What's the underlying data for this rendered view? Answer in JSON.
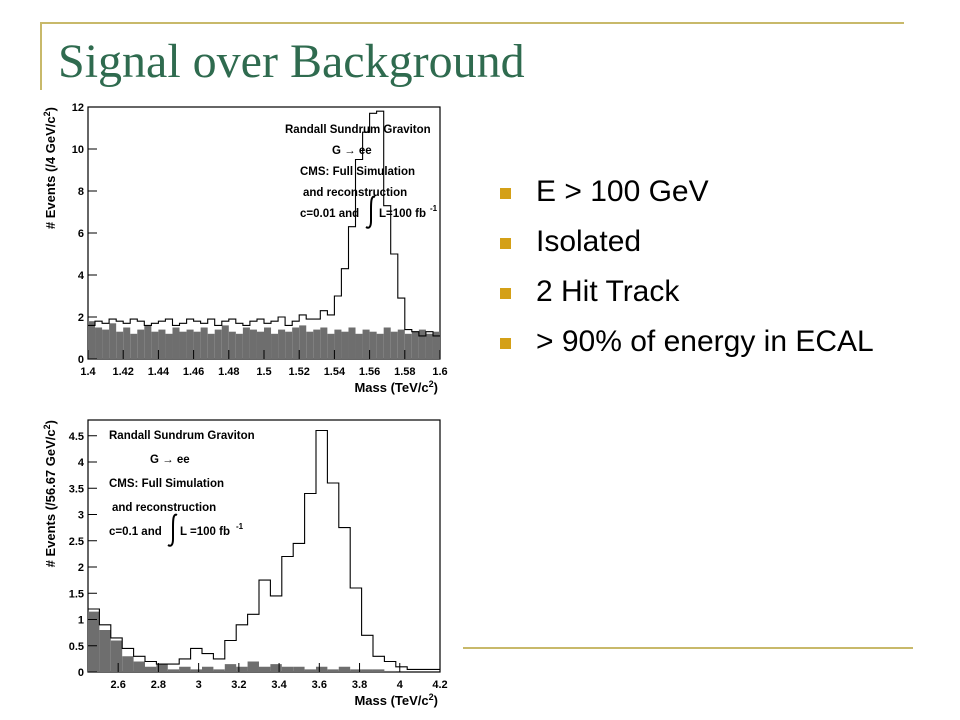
{
  "slide": {
    "title": "Signal over Background",
    "bullets": [
      "E > 100 GeV",
      "Isolated",
      "2 Hit Track",
      "> 90% of energy in ECAL"
    ],
    "accent_color": "#c8b96a",
    "title_color": "#2f6b4f",
    "bullet_color": "#d4a017"
  },
  "chart_data": [
    {
      "type": "histogram",
      "xlabel": "Mass (TeV/c^2)",
      "ylabel": "# Events (/4 GeV/c^2)",
      "xlim": [
        1.4,
        1.6
      ],
      "ylim": [
        0,
        12
      ],
      "xticks": [
        "1.4",
        "1.42",
        "1.44",
        "1.46",
        "1.48",
        "1.5",
        "1.52",
        "1.54",
        "1.56",
        "1.58",
        "1.6"
      ],
      "yticks": [
        "0",
        "2",
        "4",
        "6",
        "8",
        "10",
        "12"
      ],
      "annotations": [
        "Randall Sundrum Graviton",
        "G → ee",
        "CMS: Full Simulation",
        "and reconstruction",
        "c=0.01 and",
        "L=100 fb",
        "-1"
      ],
      "bin_width": 0.004,
      "series": [
        {
          "style": "outline",
          "values": [
            1.6,
            1.8,
            1.7,
            1.9,
            1.8,
            1.7,
            1.9,
            1.8,
            1.6,
            1.7,
            1.8,
            1.9,
            1.6,
            1.7,
            1.9,
            1.8,
            1.7,
            1.9,
            1.6,
            1.8,
            1.9,
            1.7,
            1.6,
            1.8,
            1.9,
            1.7,
            1.8,
            2.0,
            1.6,
            1.8,
            2.1,
            1.9,
            1.9,
            2.3,
            2.1,
            3.0,
            4.3,
            6.3,
            9.5,
            10.8,
            11.7,
            11.8,
            7.3,
            5.0,
            2.9,
            1.4,
            1.3,
            1.1,
            1.3,
            1.1
          ]
        },
        {
          "style": "filled",
          "values": [
            1.8,
            1.5,
            1.4,
            1.7,
            1.3,
            1.5,
            1.2,
            1.4,
            1.6,
            1.3,
            1.4,
            1.2,
            1.5,
            1.3,
            1.4,
            1.3,
            1.5,
            1.2,
            1.4,
            1.6,
            1.3,
            1.2,
            1.5,
            1.4,
            1.3,
            1.5,
            1.2,
            1.4,
            1.3,
            1.5,
            1.6,
            1.3,
            1.4,
            1.5,
            1.2,
            1.4,
            1.3,
            1.5,
            1.2,
            1.4,
            1.3,
            1.2,
            1.5,
            1.3,
            1.4,
            1.2,
            1.3,
            1.4,
            1.2,
            1.3
          ]
        }
      ]
    },
    {
      "type": "histogram",
      "xlabel": "Mass (TeV/c^2)",
      "ylabel": "# Events (/56.67 GeV/c^2)",
      "xlim": [
        2.45,
        4.2
      ],
      "ylim": [
        0,
        4.8
      ],
      "xticks": [
        "2.6",
        "2.8",
        "3",
        "3.2",
        "3.4",
        "3.6",
        "3.8",
        "4",
        "4.2"
      ],
      "xtick_values": [
        2.6,
        2.8,
        3.0,
        3.2,
        3.4,
        3.6,
        3.8,
        4.0,
        4.2
      ],
      "yticks": [
        "0",
        "0.5",
        "1",
        "1.5",
        "2",
        "2.5",
        "3",
        "3.5",
        "4",
        "4.5"
      ],
      "ytick_values": [
        0,
        0.5,
        1,
        1.5,
        2,
        2.5,
        3,
        3.5,
        4,
        4.5
      ],
      "annotations": [
        "Randall Sundrum Graviton",
        "G → ee",
        "CMS: Full Simulation",
        "and reconstruction",
        "c=0.1 and",
        "L =100 fb",
        "-1"
      ],
      "bin_width": 0.05667,
      "series": [
        {
          "style": "outline",
          "values": [
            1.2,
            0.9,
            0.65,
            0.45,
            0.3,
            0.2,
            0.15,
            0.15,
            0.25,
            0.45,
            0.35,
            0.25,
            0.6,
            0.9,
            1.1,
            1.75,
            1.45,
            2.2,
            2.45,
            3.4,
            4.6,
            3.6,
            2.75,
            1.6,
            0.7,
            0.3,
            0.2,
            0.1,
            0.05,
            0.05,
            0.05
          ]
        },
        {
          "style": "filled",
          "values": [
            1.15,
            0.8,
            0.6,
            0.3,
            0.2,
            0.1,
            0.15,
            0.05,
            0.1,
            0.05,
            0.1,
            0.05,
            0.15,
            0.1,
            0.2,
            0.1,
            0.15,
            0.1,
            0.1,
            0.05,
            0.1,
            0.05,
            0.1,
            0.05,
            0.05,
            0.05,
            0.02,
            0.0,
            0.0,
            0.0,
            0.0
          ]
        }
      ]
    }
  ]
}
